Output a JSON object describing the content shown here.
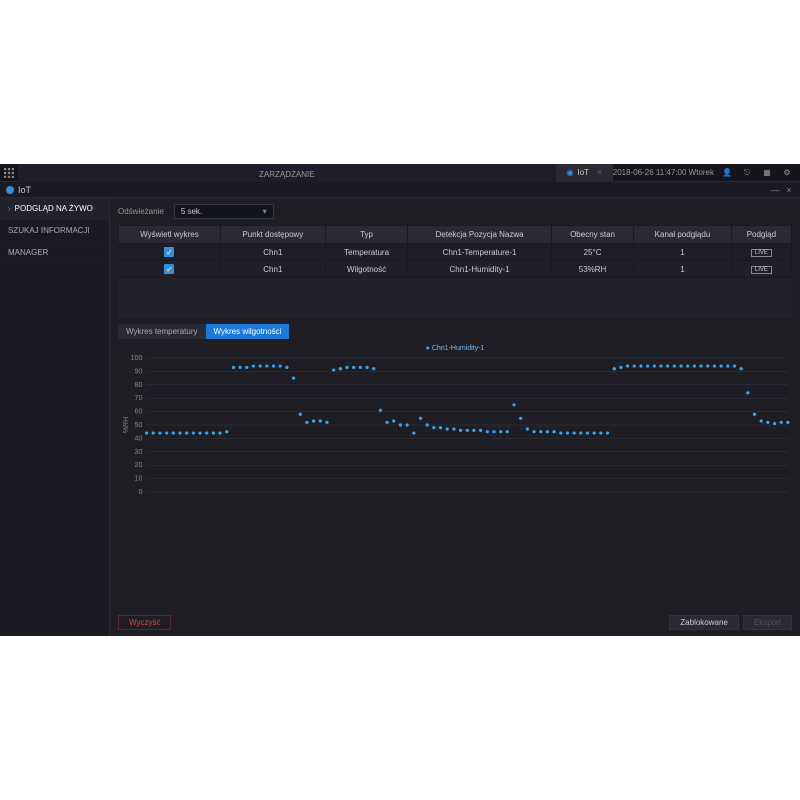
{
  "topbar": {
    "tab_main": "ZARZĄDZANIE",
    "tab_iot": "IoT",
    "datetime": "2018-06-26 11:47:00 Wtorek"
  },
  "subtitle": {
    "label": "IoT"
  },
  "sidebar": {
    "items": [
      {
        "label": "PODGLĄD NA ŻYWO",
        "active": true,
        "chev": true
      },
      {
        "label": "SZUKAJ INFORMACJI",
        "active": false,
        "chev": false
      },
      {
        "label": "MANAGER",
        "active": false,
        "chev": false
      }
    ]
  },
  "refresh": {
    "label": "Odświeżanie",
    "value": "5 sek."
  },
  "table": {
    "headers": [
      "Wyświetl wykres",
      "Punkt dostępowy",
      "Typ",
      "Detekcja Pozycja Nazwa",
      "Obecny stan",
      "Kanał podglądu",
      "Podgląd"
    ],
    "rows": [
      {
        "checked": true,
        "ap": "Chn1",
        "type": "Temperatura",
        "name": "Chn1-Temperature-1",
        "state": "25°C",
        "channel": "1",
        "live": "LIVE"
      },
      {
        "checked": true,
        "ap": "Chn1",
        "type": "Wilgotność",
        "name": "Chn1-Humidity-1",
        "state": "53%RH",
        "channel": "1",
        "live": "LIVE"
      }
    ]
  },
  "chart_tabs": {
    "temp": "Wykres temperatury",
    "hum": "Wykres wilgotności"
  },
  "chart": {
    "type": "scatter",
    "legend": "Chn1-Humidity-1",
    "ylabel": "%RH",
    "ymin": 0,
    "ymax": 100,
    "ytick_step": 10,
    "point_color": "#3aa5f0",
    "grid_color": "#333842",
    "background_color": "#1e1e24",
    "text_color": "#888888",
    "point_radius": 1.6,
    "values": [
      44,
      44,
      44,
      44,
      44,
      44,
      44,
      44,
      44,
      44,
      44,
      44,
      45,
      93,
      93,
      93,
      94,
      94,
      94,
      94,
      94,
      93,
      85,
      58,
      52,
      53,
      53,
      52,
      91,
      92,
      93,
      93,
      93,
      93,
      92,
      61,
      52,
      53,
      50,
      50,
      44,
      55,
      50,
      48,
      48,
      47,
      47,
      46,
      46,
      46,
      46,
      45,
      45,
      45,
      45,
      65,
      55,
      47,
      45,
      45,
      45,
      45,
      44,
      44,
      44,
      44,
      44,
      44,
      44,
      44,
      92,
      93,
      94,
      94,
      94,
      94,
      94,
      94,
      94,
      94,
      94,
      94,
      94,
      94,
      94,
      94,
      94,
      94,
      94,
      92,
      74,
      58,
      53,
      52,
      51,
      52,
      52
    ]
  },
  "buttons": {
    "clear": "Wyczyść",
    "locked": "Zablokowane",
    "export": "Eksport"
  }
}
